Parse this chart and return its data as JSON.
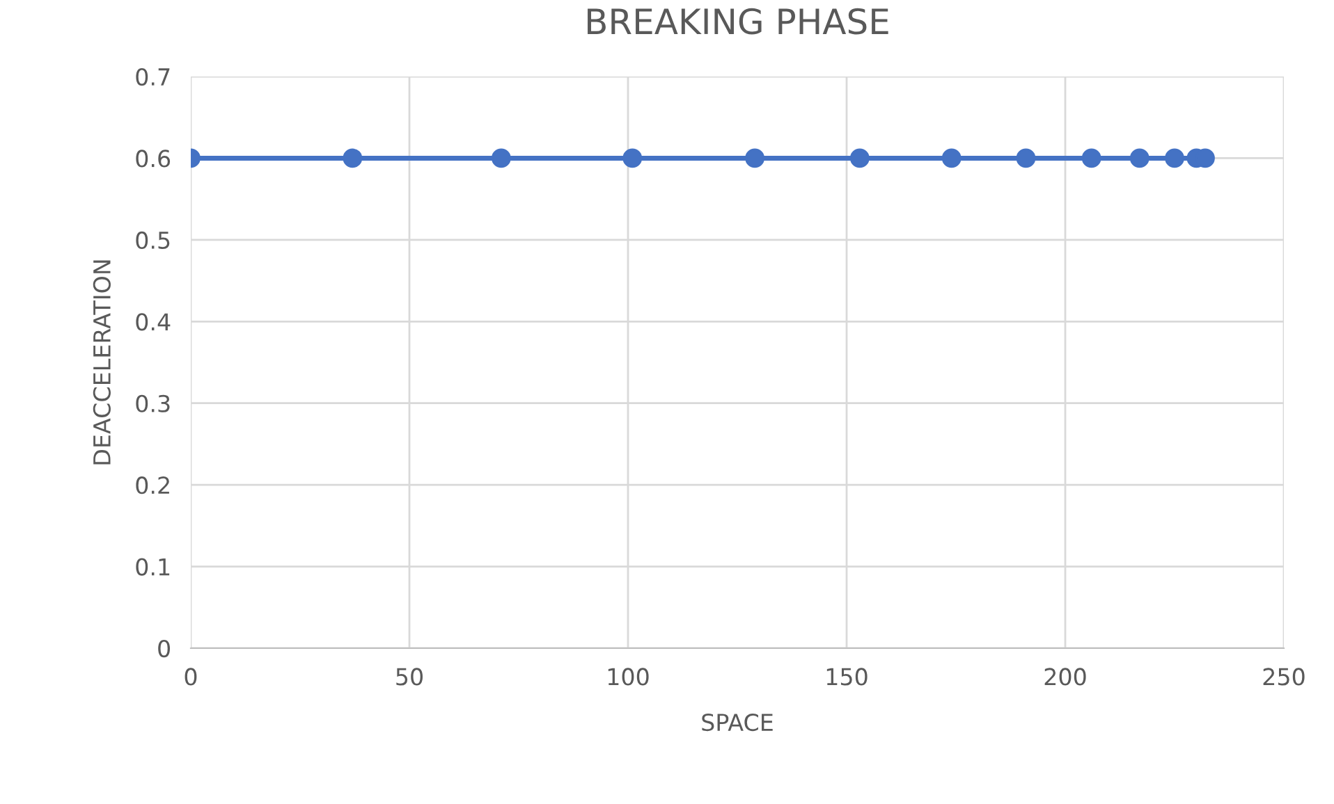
{
  "chart_data": {
    "type": "line",
    "title": "BREAKING PHASE",
    "xlabel": "SPACE",
    "ylabel": "DEACCELERATION",
    "x": [
      0,
      37,
      71,
      101,
      129,
      153,
      174,
      191,
      206,
      217,
      225,
      230,
      232
    ],
    "series": [
      {
        "color": "#4472c4",
        "values": [
          0.6,
          0.6,
          0.6,
          0.6,
          0.6,
          0.6,
          0.6,
          0.6,
          0.6,
          0.6,
          0.6,
          0.6,
          0.6
        ]
      }
    ],
    "xlim": [
      0,
      250
    ],
    "xticks": [
      0,
      50,
      100,
      150,
      200,
      250
    ],
    "ylim": [
      0,
      0.7
    ],
    "yticks": [
      {
        "value": 0,
        "label": "0"
      },
      0.1,
      0.2,
      0.3,
      0.4,
      0.5,
      0.6,
      0.7
    ],
    "grid": true,
    "marker": "circle",
    "line_style": "solid",
    "legend": false
  }
}
